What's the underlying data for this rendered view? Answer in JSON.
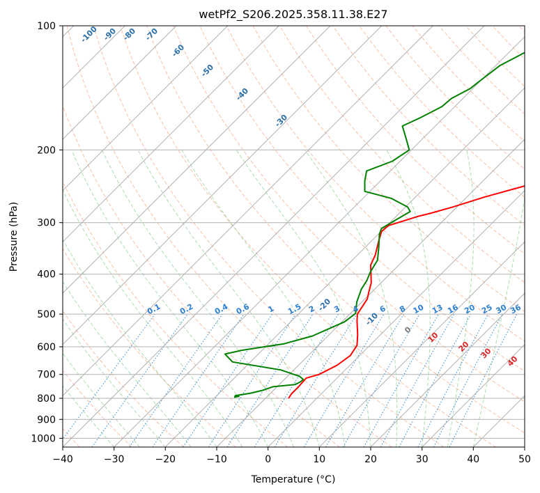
{
  "chart_data": {
    "type": "line",
    "subtype": "skew-T log-P diagram",
    "title": "wetPf2_S206.2025.358.11.38.E27",
    "xlabel": "Temperature (°C)",
    "ylabel": "Pressure (hPa)",
    "xlim": [
      -40,
      50
    ],
    "ylim": [
      1050,
      100
    ],
    "y_scale": "log",
    "x_ticks": [
      -40,
      -30,
      -20,
      -10,
      0,
      10,
      20,
      30,
      40,
      50
    ],
    "y_ticks": [
      1000,
      900,
      800,
      700,
      600,
      500,
      400,
      300,
      200,
      100
    ],
    "grid": true,
    "isotherm_labels": [
      "-100",
      "-90",
      "-80",
      "-70",
      "-60",
      "-50",
      "-40",
      "-30",
      "-20",
      "-10",
      "0",
      "10",
      "20",
      "30",
      "40"
    ],
    "mixing_ratio_labels": [
      "0.1",
      "0.2",
      "0.4",
      "0.6",
      "1",
      "1.5",
      "2",
      "3",
      "4",
      "6",
      "8",
      "10",
      "13",
      "16",
      "20",
      "25",
      "30",
      "36"
    ],
    "series": [
      {
        "color": "#ff0000",
        "points": [
          [
            -5.5,
            800
          ],
          [
            -5.8,
            780
          ],
          [
            -5.8,
            750
          ],
          [
            -6.0,
            715
          ],
          [
            -4.2,
            700
          ],
          [
            -2.5,
            665
          ],
          [
            -1.8,
            630
          ],
          [
            -2.5,
            595
          ],
          [
            -4.5,
            560
          ],
          [
            -7.2,
            520
          ],
          [
            -8.5,
            500
          ],
          [
            -9.5,
            460
          ],
          [
            -10.7,
            440
          ],
          [
            -11.9,
            420
          ],
          [
            -15.5,
            380
          ],
          [
            -16.5,
            360
          ],
          [
            -18.8,
            330
          ],
          [
            -19.9,
            315
          ],
          [
            -19.7,
            305
          ],
          [
            -15.8,
            290
          ],
          [
            -14.0,
            285
          ],
          [
            -10.8,
            275
          ],
          [
            -6.5,
            260
          ],
          [
            -1.1,
            245
          ],
          [
            5.6,
            227
          ],
          [
            15.6,
            200
          ],
          [
            20.7,
            186
          ],
          [
            26.5,
            165
          ],
          [
            29.2,
            156
          ],
          [
            33.2,
            147
          ],
          [
            44.0,
            125
          ],
          [
            49.0,
            115
          ],
          [
            57.9,
            100
          ]
        ],
        "xy_units": [
          "°C",
          "hPa"
        ]
      },
      {
        "color": "#008000",
        "points": [
          [
            -15.5,
            790
          ],
          [
            -16.2,
            795
          ],
          [
            -16.4,
            788
          ],
          [
            -14.0,
            778
          ],
          [
            -12.1,
            765
          ],
          [
            -10.8,
            750
          ],
          [
            -6.9,
            741
          ],
          [
            -6.4,
            730
          ],
          [
            -6.3,
            720
          ],
          [
            -7.6,
            708
          ],
          [
            -12.5,
            683
          ],
          [
            -23.5,
            653
          ],
          [
            -26.5,
            625
          ],
          [
            -24.0,
            612
          ],
          [
            -17.0,
            590
          ],
          [
            -13.0,
            565
          ],
          [
            -9.5,
            522
          ],
          [
            -9.0,
            498
          ],
          [
            -11.0,
            467
          ],
          [
            -12.6,
            435
          ],
          [
            -13.2,
            415
          ],
          [
            -14.2,
            395
          ],
          [
            -15.1,
            370
          ],
          [
            -17.3,
            345
          ],
          [
            -19.8,
            320
          ],
          [
            -20.5,
            310
          ],
          [
            -19.5,
            297
          ],
          [
            -18.2,
            282
          ],
          [
            -19.6,
            275
          ],
          [
            -24.5,
            262
          ],
          [
            -31.0,
            252
          ],
          [
            -33.0,
            238
          ],
          [
            -34.6,
            225
          ],
          [
            -31.5,
            213
          ],
          [
            -30.4,
            200
          ],
          [
            -33.4,
            187
          ],
          [
            -36.4,
            175
          ],
          [
            -34.5,
            167
          ],
          [
            -32.5,
            157
          ],
          [
            -32.2,
            150
          ],
          [
            -30.5,
            142
          ],
          [
            -30.1,
            136
          ],
          [
            -29.2,
            125
          ],
          [
            -26.6,
            115
          ],
          [
            -22.6,
            108
          ],
          [
            -19.3,
            100
          ]
        ],
        "xy_units": [
          "°C",
          "hPa"
        ]
      }
    ]
  }
}
